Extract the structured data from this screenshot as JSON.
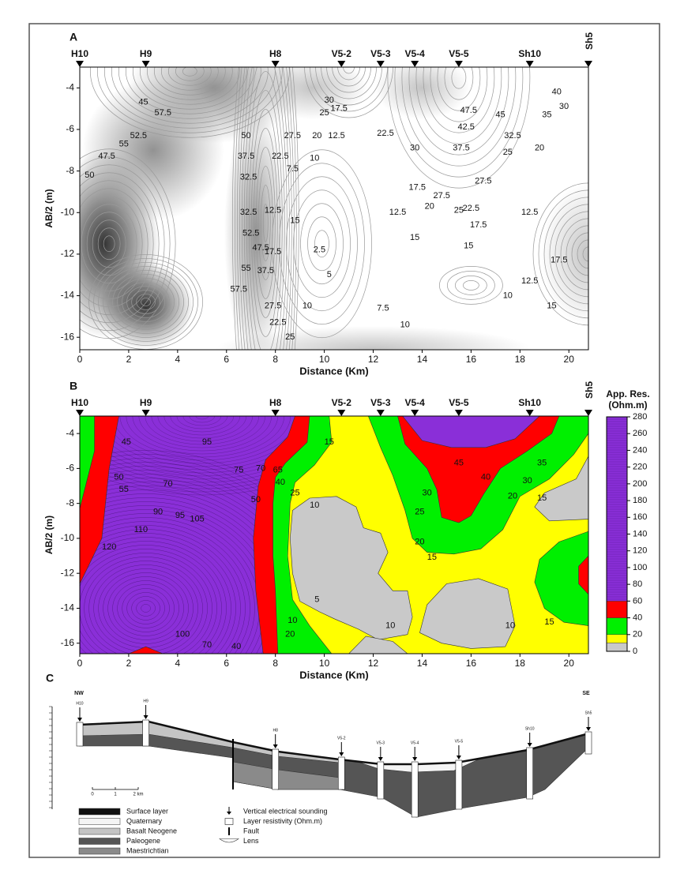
{
  "panels": [
    {
      "label": "A",
      "type": "contour",
      "xlabel": "Distance (Km)",
      "ylabel": "AB/2 (m)",
      "xlim": [
        0,
        20.8
      ],
      "ylim": [
        -16.6,
        -3
      ],
      "xticks": [
        0,
        2,
        4,
        6,
        8,
        10,
        12,
        14,
        16,
        18,
        20
      ],
      "yticks": [
        -4,
        -6,
        -8,
        -10,
        -12,
        -14,
        -16
      ],
      "stations": [
        {
          "name": "H10",
          "x": 0
        },
        {
          "name": "H9",
          "x": 2.7
        },
        {
          "name": "H8",
          "x": 8
        },
        {
          "name": "V5-2",
          "x": 10.7
        },
        {
          "name": "V5-3",
          "x": 12.3
        },
        {
          "name": "V5-4",
          "x": 13.7
        },
        {
          "name": "V5-5",
          "x": 15.5
        },
        {
          "name": "Sh10",
          "x": 18.4
        },
        {
          "name": "Sh5",
          "x": 20.8
        }
      ],
      "contour_labels": [
        "45",
        "57.5",
        "55",
        "52.5",
        "47.5",
        "50",
        "50",
        "37.5",
        "32.5",
        "32.5",
        "52.5",
        "47.5",
        "55",
        "57.5",
        "37.5",
        "27.5",
        "22.5",
        "25",
        "12.5",
        "15",
        "17.5",
        "22.5",
        "27.5",
        "20",
        "25",
        "30",
        "17.5",
        "12.5",
        "10",
        "7.5",
        "2.5",
        "5",
        "10",
        "7.5",
        "10",
        "22.5",
        "30",
        "12.5",
        "17.5",
        "20",
        "15",
        "47.5",
        "45",
        "42.5",
        "37.5",
        "32.5",
        "35",
        "30",
        "40",
        "25",
        "20",
        "27.5",
        "27.5",
        "25",
        "22.5",
        "17.5",
        "15",
        "12.5",
        "10",
        "12.5",
        "17.5",
        "15"
      ]
    },
    {
      "label": "B",
      "type": "filled-contour",
      "xlabel": "Distance (Km)",
      "ylabel": "AB/2 (m)",
      "xlim": [
        0,
        20.8
      ],
      "ylim": [
        -16.6,
        -3
      ],
      "xticks": [
        0,
        2,
        4,
        6,
        8,
        10,
        12,
        14,
        16,
        18,
        20
      ],
      "yticks": [
        -4,
        -6,
        -8,
        -10,
        -12,
        -14,
        -16
      ],
      "stations": [
        {
          "name": "H10",
          "x": 0
        },
        {
          "name": "H9",
          "x": 2.7
        },
        {
          "name": "H8",
          "x": 8
        },
        {
          "name": "V5-2",
          "x": 10.7
        },
        {
          "name": "V5-3",
          "x": 12.3
        },
        {
          "name": "V5-4",
          "x": 13.7
        },
        {
          "name": "V5-5",
          "x": 15.5
        },
        {
          "name": "Sh10",
          "x": 18.4
        },
        {
          "name": "Sh5",
          "x": 20.8
        }
      ],
      "colorbar": {
        "title_lines": [
          "App. Res.",
          "(Ohm.m)"
        ],
        "lim": [
          0,
          280
        ],
        "ticks": [
          0,
          20,
          40,
          60,
          80,
          100,
          120,
          140,
          160,
          180,
          200,
          220,
          240,
          260,
          280
        ],
        "bands": [
          {
            "from": 0,
            "to": 10,
            "color": "#c9c9c9"
          },
          {
            "from": 10,
            "to": 20,
            "color": "#ffff00"
          },
          {
            "from": 20,
            "to": 40,
            "color": "#00f000"
          },
          {
            "from": 40,
            "to": 60,
            "color": "#ff0000"
          },
          {
            "from": 60,
            "to": 280,
            "color": "#8a2fd8"
          }
        ]
      },
      "contour_labels": [
        "45",
        "50",
        "55",
        "70",
        "90",
        "95",
        "105",
        "110",
        "120",
        "95",
        "75",
        "70",
        "65",
        "50",
        "40",
        "25",
        "15",
        "10",
        "5",
        "10",
        "20",
        "40",
        "70",
        "100",
        "45",
        "40",
        "35",
        "30",
        "25",
        "20",
        "15",
        "30",
        "20",
        "15",
        "10",
        "10",
        "15"
      ]
    },
    {
      "label": "C",
      "type": "cross-section",
      "directions": [
        "NW",
        "SE"
      ],
      "scale": [
        "0",
        "1",
        "2 km"
      ],
      "units": [
        {
          "name": "Surface layer",
          "color": "#111111"
        },
        {
          "name": "Quaternary",
          "color": "#f4f4f4"
        },
        {
          "name": "Basalt Neogene",
          "color": "#c4c4c4"
        },
        {
          "name": "Paleogene",
          "color": "#555555"
        },
        {
          "name": "Maestrichtian",
          "color": "#8a8a8a"
        }
      ],
      "symbols": [
        "Vertical electrical sounding",
        "Layer resistivity (Ohm.m)",
        "Fault",
        "Lens"
      ]
    }
  ]
}
